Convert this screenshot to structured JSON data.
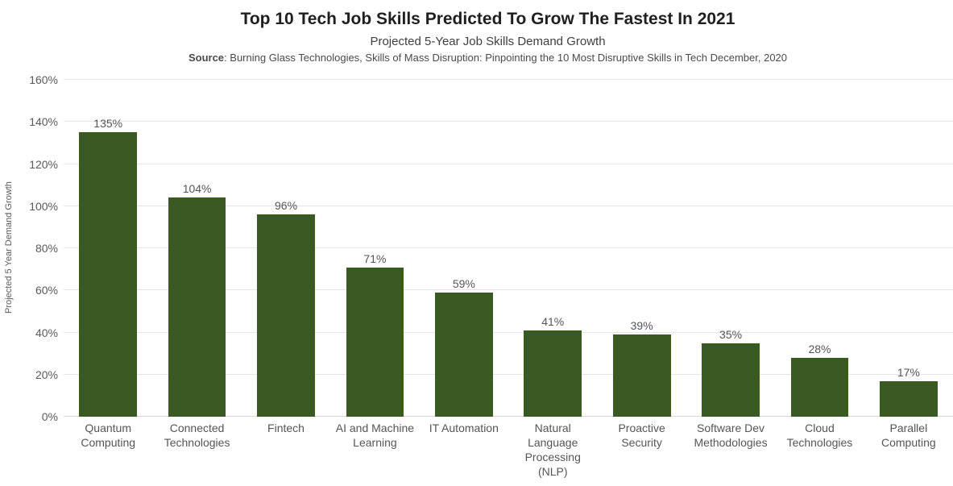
{
  "header": {
    "title": "Top 10 Tech Job Skills Predicted To Grow The Fastest In 2021",
    "subtitle": "Projected 5-Year Job Skills Demand Growth",
    "source_label": "Source",
    "source_text": ": Burning Glass Technologies, Skills of Mass Disruption: Pinpointing the 10 Most Disruptive Skills in Tech December, 2020"
  },
  "chart_data": {
    "type": "bar",
    "title": "Top 10 Tech Job Skills Predicted To Grow The Fastest In 2021",
    "subtitle": "Projected 5-Year Job Skills Demand Growth",
    "source": "Source: Burning Glass Technologies, Skills of Mass Disruption: Pinpointing the 10 Most Disruptive Skills in Tech December, 2020",
    "xlabel": "",
    "ylabel": "Projected 5 Year Demand Growth",
    "ylim": [
      0,
      160
    ],
    "yticks": [
      0,
      20,
      40,
      60,
      80,
      100,
      120,
      140,
      160
    ],
    "ytick_labels": [
      "0%",
      "20%",
      "40%",
      "60%",
      "80%",
      "100%",
      "120%",
      "140%",
      "160%"
    ],
    "grid": true,
    "legend": false,
    "categories": [
      "Quantum\nComputing",
      "Connected\nTechnologies",
      "Fintech",
      "AI and Machine\nLearning",
      "IT Automation",
      "Natural\nLanguage\nProcessing\n(NLP)",
      "Proactive\nSecurity",
      "Software Dev\nMethodologies",
      "Cloud\nTechnologies",
      "Parallel\nComputing"
    ],
    "values": [
      135,
      104,
      96,
      71,
      59,
      41,
      39,
      35,
      28,
      17
    ],
    "value_labels": [
      "135%",
      "104%",
      "96%",
      "71%",
      "59%",
      "41%",
      "39%",
      "35%",
      "28%",
      "17%"
    ]
  },
  "colors": {
    "background": "#ffffff",
    "bar": "#3A5A22",
    "gridline": "#e6e6e6",
    "baseline": "#d8d8d8",
    "axis_text": "#5a5a5a",
    "value_text": "#555555",
    "title_text": "#1f1f1f"
  }
}
